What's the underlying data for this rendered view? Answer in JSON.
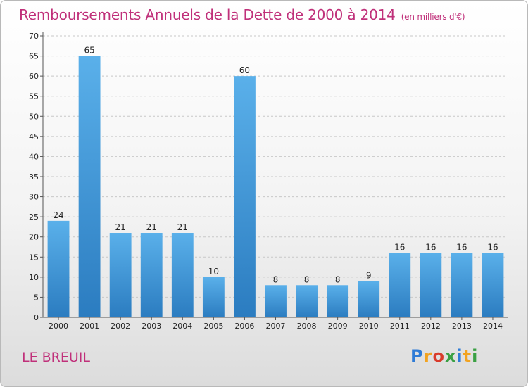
{
  "title": "Remboursements Annuels de la Dette de 2000 à 2014",
  "unit": "(en milliers d'€)",
  "commune": "LE BREUIL",
  "logo": {
    "text": "Proxiti",
    "letter_colors": [
      "#2e7bd6",
      "#f2a320",
      "#d93b2b",
      "#3aa043",
      "#2e7bd6",
      "#f2a320",
      "#3aa043"
    ]
  },
  "colors": {
    "title": "#c0307a",
    "bar_top": "#5ab0ea",
    "bar_bottom": "#2b7cc0",
    "axis": "#555555",
    "grid": "#c8c8c8"
  },
  "chart_data": {
    "type": "bar",
    "title": "Remboursements Annuels de la Dette de 2000 à 2014",
    "subtitle": "(en milliers d'€)",
    "categories": [
      "2000",
      "2001",
      "2002",
      "2003",
      "2004",
      "2005",
      "2006",
      "2007",
      "2008",
      "2009",
      "2010",
      "2011",
      "2012",
      "2013",
      "2014"
    ],
    "values": [
      24,
      65,
      21,
      21,
      21,
      10,
      60,
      8,
      8,
      8,
      9,
      16,
      16,
      16,
      16
    ],
    "y_ticks": [
      0,
      5,
      10,
      15,
      20,
      25,
      30,
      35,
      40,
      45,
      50,
      55,
      60,
      65,
      70
    ],
    "ylim": [
      0,
      70
    ],
    "grid": "horizontal, dashed",
    "legend": "none"
  }
}
